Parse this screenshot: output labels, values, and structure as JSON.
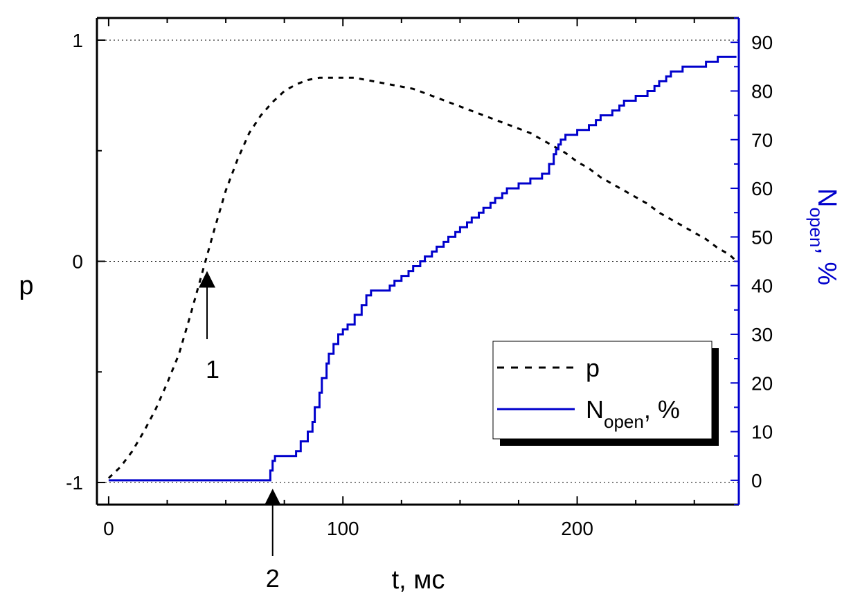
{
  "chart_data": {
    "type": "line",
    "xlabel": "t, мс",
    "ylabel": "p",
    "y2label": {
      "main": "N",
      "sub": "open",
      "rest": ", %"
    },
    "xlim": [
      -5,
      269
    ],
    "ylim": [
      -1.1,
      1.1
    ],
    "y2lim": [
      -5,
      95
    ],
    "x_ticks": [
      0,
      100,
      200
    ],
    "y_ticks": [
      -1,
      0,
      1
    ],
    "y_tick_labels": [
      "-1",
      "0",
      "1"
    ],
    "y2_ticks": [
      0,
      10,
      20,
      30,
      40,
      50,
      60,
      70,
      80,
      90
    ],
    "grid": "dotted horizontal at y = -1, 0, 1",
    "legend": {
      "placement": "lower-right",
      "entries": [
        {
          "label": "p",
          "style": "dashed",
          "color": "#000000"
        },
        {
          "label": "N",
          "sub": "open",
          "rest": ", %",
          "style": "solid",
          "color": "#0000cc"
        }
      ]
    },
    "annotations": [
      {
        "label": "1",
        "x": 42,
        "y": -0.05,
        "axis": "left"
      },
      {
        "label": "2",
        "x": 70,
        "y": -1.05,
        "axis": "left"
      }
    ],
    "series": [
      {
        "name": "p",
        "axis": "left",
        "color": "#000000",
        "style": "dashed",
        "x": [
          0,
          5,
          10,
          15,
          20,
          25,
          30,
          35,
          40,
          45,
          50,
          55,
          60,
          65,
          70,
          75,
          80,
          85,
          90,
          95,
          100,
          105,
          110,
          115,
          120,
          125,
          130,
          135,
          140,
          145,
          150,
          155,
          160,
          165,
          170,
          175,
          180,
          185,
          190,
          195,
          200,
          205,
          210,
          215,
          220,
          225,
          230,
          235,
          240,
          245,
          250,
          255,
          260,
          265,
          268
        ],
        "y": [
          -0.98,
          -0.93,
          -0.86,
          -0.77,
          -0.67,
          -0.55,
          -0.42,
          -0.24,
          -0.05,
          0.14,
          0.32,
          0.46,
          0.58,
          0.66,
          0.72,
          0.77,
          0.8,
          0.82,
          0.83,
          0.83,
          0.83,
          0.83,
          0.82,
          0.81,
          0.8,
          0.79,
          0.78,
          0.76,
          0.74,
          0.72,
          0.7,
          0.68,
          0.66,
          0.64,
          0.62,
          0.6,
          0.58,
          0.55,
          0.52,
          0.49,
          0.45,
          0.42,
          0.38,
          0.35,
          0.32,
          0.29,
          0.26,
          0.22,
          0.19,
          0.16,
          0.13,
          0.1,
          0.06,
          0.03,
          0.0
        ]
      },
      {
        "name": "N",
        "axis": "right",
        "color": "#0000cc",
        "style": "solid",
        "x": [
          0,
          68,
          69,
          70,
          71,
          75,
          80,
          82,
          85,
          87,
          88,
          90,
          91,
          93,
          94,
          96,
          98,
          100,
          102,
          105,
          108,
          110,
          112,
          115,
          118,
          120,
          122,
          125,
          128,
          130,
          133,
          135,
          138,
          140,
          143,
          145,
          148,
          150,
          153,
          155,
          158,
          160,
          163,
          165,
          168,
          170,
          173,
          175,
          178,
          180,
          183,
          185,
          188,
          190,
          191,
          192,
          193,
          195,
          197,
          200,
          203,
          205,
          208,
          210,
          213,
          215,
          218,
          220,
          223,
          225,
          228,
          230,
          233,
          235,
          238,
          240,
          243,
          245,
          248,
          250,
          253,
          255,
          258,
          260,
          263,
          265,
          268
        ],
        "y": [
          0,
          0,
          2,
          4,
          5,
          5,
          6,
          8,
          10,
          12,
          15,
          18,
          21,
          24,
          26,
          28,
          30,
          31,
          32,
          34,
          36,
          38,
          39,
          39,
          39,
          40,
          41,
          42,
          43,
          44,
          45,
          46,
          47,
          48,
          49,
          50,
          51,
          52,
          53,
          54,
          55,
          56,
          57,
          58,
          59,
          60,
          60,
          61,
          61,
          62,
          62,
          63,
          65,
          67,
          68,
          69,
          70,
          71,
          71,
          72,
          72,
          73,
          74,
          75,
          75,
          76,
          77,
          78,
          78,
          79,
          79,
          80,
          81,
          82,
          83,
          84,
          84,
          85,
          85,
          85,
          85,
          86,
          86,
          87,
          87,
          87,
          87
        ]
      }
    ]
  }
}
